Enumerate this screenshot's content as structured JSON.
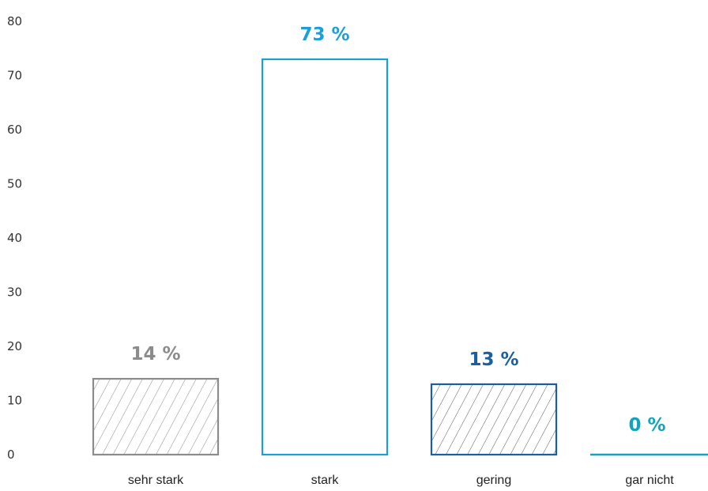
{
  "chart_data": {
    "type": "bar",
    "categories": [
      "sehr stark",
      "stark",
      "gering",
      "gar nicht"
    ],
    "values": [
      14,
      73,
      13,
      0
    ],
    "value_labels": [
      "14 %",
      "73 %",
      "13 %",
      "0 %"
    ],
    "y_ticks": [
      "0",
      "10",
      "20",
      "30",
      "40",
      "50",
      "60",
      "70",
      "80"
    ],
    "ylim": [
      0,
      80
    ],
    "grid": false,
    "bar_styles": [
      {
        "stroke": "#8c8c8c",
        "hatched": true,
        "label_color": "#8c8c8c"
      },
      {
        "stroke": "#1a9fd9",
        "hatched": false,
        "label_color": "#1a9fd9"
      },
      {
        "stroke": "#1a5fa0",
        "hatched": true,
        "label_color": "#1a5fa0"
      },
      {
        "stroke": "#14a3bd",
        "hatched": false,
        "label_color": "#14a3bd"
      }
    ]
  }
}
